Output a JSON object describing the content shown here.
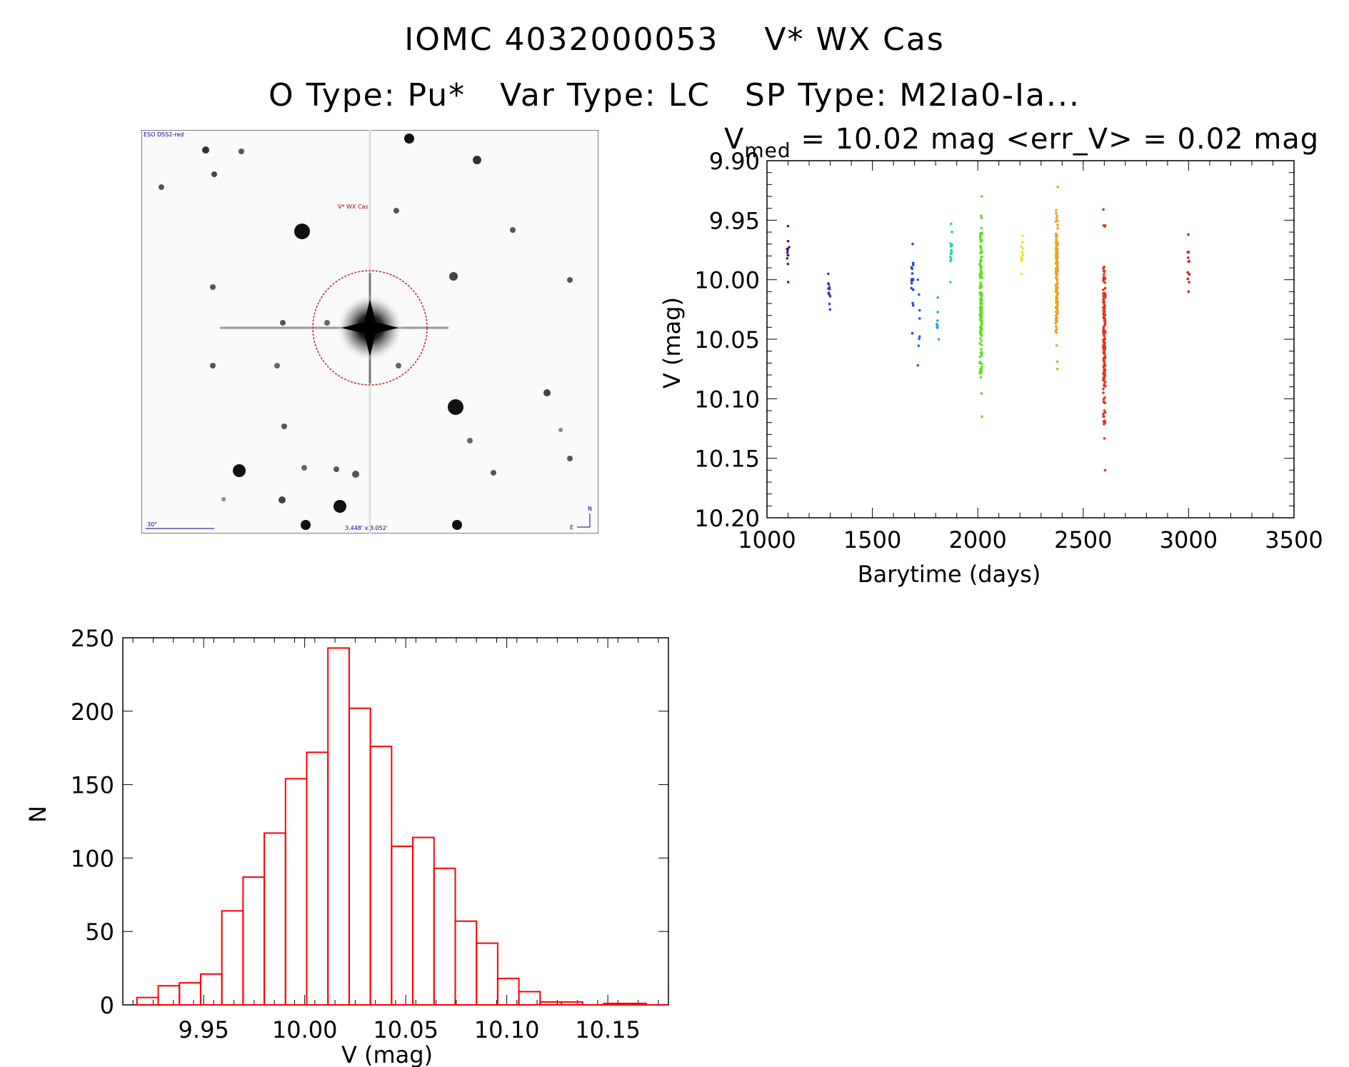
{
  "title": {
    "line1": "IOMC 4032000053    V* WX Cas",
    "line2": "O Type: Pu*   Var Type: LC   SP Type: M2Ia0-Ia..."
  },
  "finder_chart": {
    "survey_label": "ESO DSS2-red",
    "target_label": "V* WX Cas",
    "scale_label": "30\"",
    "fov_label": "3.448' x 3.052'",
    "north_label": "N",
    "east_label": "E"
  },
  "chart_data": [
    {
      "type": "scatter",
      "name": "light-curve",
      "title_prefix": "V",
      "title_subscript": "med",
      "title_rest": " = 10.02 mag <err_V> = 0.02 mag",
      "xlabel": "Barytime (days)",
      "ylabel": "V (mag)",
      "xlim": [
        1000,
        3500
      ],
      "ylim": [
        10.2,
        9.9
      ],
      "xticks": [
        "1000",
        "1500",
        "2000",
        "2500",
        "3000",
        "3500"
      ],
      "yticks": [
        "9.90",
        "9.95",
        "10.00",
        "10.05",
        "10.10",
        "10.15",
        "10.20"
      ],
      "series": [
        {
          "x": 1100,
          "color": "#5a0f7a",
          "ymin": 9.955,
          "ymax": 10.002,
          "n": 12
        },
        {
          "x": 1295,
          "color": "#5a2fb0",
          "ymin": 9.995,
          "ymax": 10.025,
          "n": 14
        },
        {
          "x": 1690,
          "color": "#2040e0",
          "ymin": 9.97,
          "ymax": 10.045,
          "n": 16
        },
        {
          "x": 1720,
          "color": "#2a5cf0",
          "ymin": 10.0,
          "ymax": 10.072,
          "n": 8
        },
        {
          "x": 1810,
          "color": "#20a8e0",
          "ymin": 10.015,
          "ymax": 10.05,
          "n": 8
        },
        {
          "x": 1875,
          "color": "#20d8a0",
          "ymin": 9.953,
          "ymax": 10.002,
          "n": 14
        },
        {
          "x": 2015,
          "color": "#60e020",
          "ymin": 9.93,
          "ymax": 10.115,
          "n": 160
        },
        {
          "x": 2210,
          "color": "#e8e820",
          "ymin": 9.963,
          "ymax": 9.995,
          "n": 12
        },
        {
          "x": 2375,
          "color": "#f0a020",
          "ymin": 9.922,
          "ymax": 10.075,
          "n": 150
        },
        {
          "x": 2600,
          "color": "#e83020",
          "ymin": 9.941,
          "ymax": 10.16,
          "n": 160
        },
        {
          "x": 3000,
          "color": "#e01818",
          "ymin": 9.962,
          "ymax": 10.01,
          "n": 12
        }
      ]
    },
    {
      "type": "bar",
      "name": "histogram",
      "xlabel": "V (mag)",
      "ylabel": "N",
      "xlim": [
        9.91,
        10.18
      ],
      "ylim": [
        0,
        250
      ],
      "xticks": [
        "9.95",
        "10.00",
        "10.05",
        "10.10",
        "10.15"
      ],
      "yticks": [
        "0",
        "50",
        "100",
        "150",
        "200",
        "250"
      ],
      "bin_width": 0.0105,
      "bin_start": 9.917,
      "values": [
        5,
        13,
        15,
        21,
        64,
        87,
        117,
        154,
        172,
        243,
        202,
        176,
        108,
        114,
        93,
        57,
        42,
        18,
        9,
        2,
        2,
        0,
        1,
        1,
        0
      ],
      "bar_color": "#ff0000"
    }
  ]
}
